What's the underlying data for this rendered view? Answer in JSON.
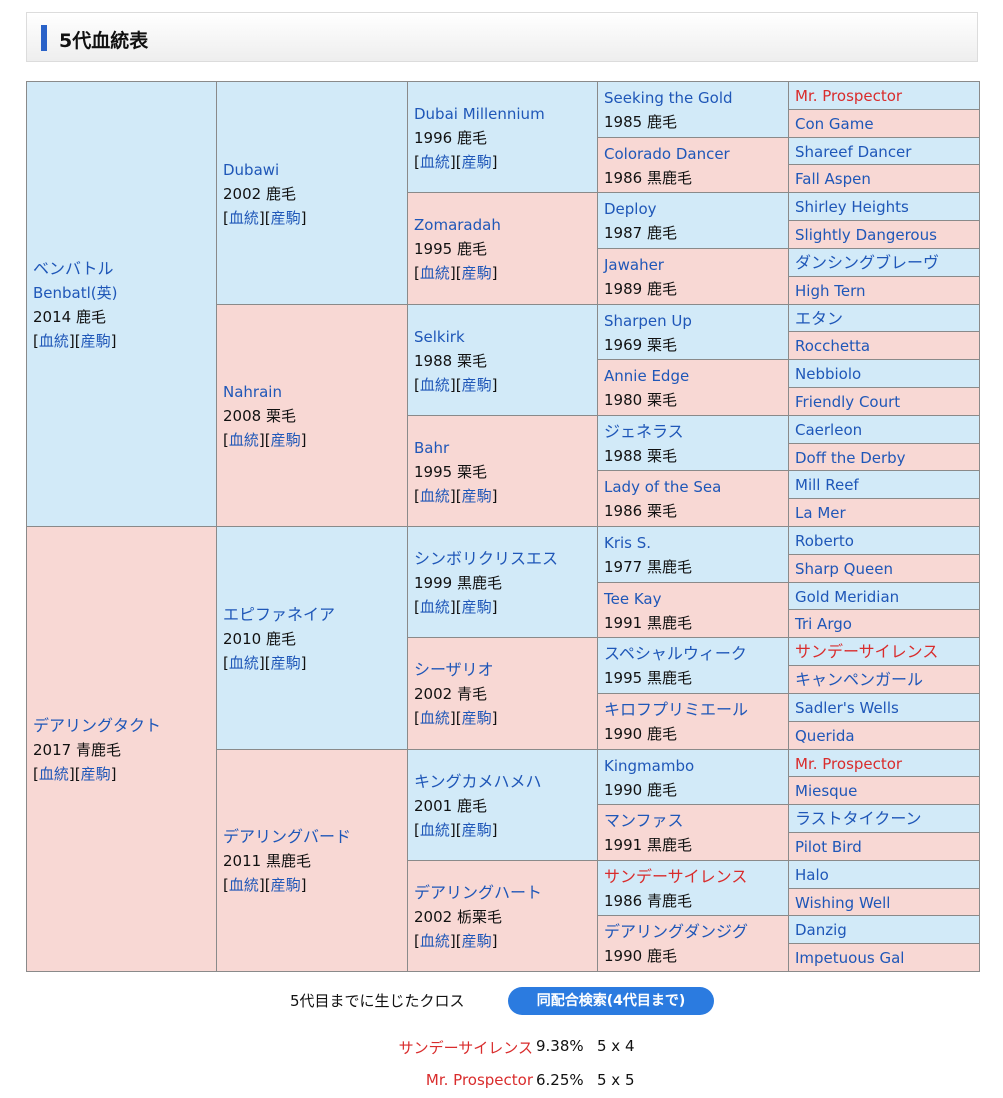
{
  "section": {
    "title": "5代血統表"
  },
  "links": {
    "pedigree": "血統",
    "offspring": "産駒"
  },
  "pedigree": [
    {
      "gen": 1,
      "sex": "m",
      "name": "ベンバトル",
      "alt": "Benbatl(英)",
      "info": "2014 鹿毛",
      "links": true
    },
    {
      "gen": 1,
      "sex": "f",
      "name": "デアリングタクト",
      "info": "2017 青鹿毛",
      "links": true
    },
    {
      "gen": 2,
      "sex": "m",
      "name": "Dubawi",
      "info": "2002 鹿毛",
      "links": true
    },
    {
      "gen": 2,
      "sex": "f",
      "name": "Nahrain",
      "info": "2008 栗毛",
      "links": true
    },
    {
      "gen": 2,
      "sex": "m",
      "name": "エピファネイア",
      "info": "2010 鹿毛",
      "links": true
    },
    {
      "gen": 2,
      "sex": "f",
      "name": "デアリングバード",
      "info": "2011 黒鹿毛",
      "links": true
    },
    {
      "gen": 3,
      "sex": "m",
      "name": "Dubai Millennium",
      "info": "1996 鹿毛",
      "links": true
    },
    {
      "gen": 3,
      "sex": "f",
      "name": "Zomaradah",
      "info": "1995 鹿毛",
      "links": true
    },
    {
      "gen": 3,
      "sex": "m",
      "name": "Selkirk",
      "info": "1988 栗毛",
      "links": true
    },
    {
      "gen": 3,
      "sex": "f",
      "name": "Bahr",
      "info": "1995 栗毛",
      "links": true
    },
    {
      "gen": 3,
      "sex": "m",
      "name": "シンボリクリスエス",
      "info": "1999 黒鹿毛",
      "links": true
    },
    {
      "gen": 3,
      "sex": "f",
      "name": "シーザリオ",
      "info": "2002 青毛",
      "links": true
    },
    {
      "gen": 3,
      "sex": "m",
      "name": "キングカメハメハ",
      "info": "2001 鹿毛",
      "links": true
    },
    {
      "gen": 3,
      "sex": "f",
      "name": "デアリングハート",
      "info": "2002 栃栗毛",
      "links": true
    },
    {
      "gen": 4,
      "sex": "m",
      "name": "Seeking the Gold",
      "info": "1985 鹿毛"
    },
    {
      "gen": 4,
      "sex": "f",
      "name": "Colorado Dancer",
      "info": "1986 黒鹿毛"
    },
    {
      "gen": 4,
      "sex": "m",
      "name": "Deploy",
      "info": "1987 鹿毛"
    },
    {
      "gen": 4,
      "sex": "f",
      "name": "Jawaher",
      "info": "1989 鹿毛"
    },
    {
      "gen": 4,
      "sex": "m",
      "name": "Sharpen Up",
      "info": "1969 栗毛"
    },
    {
      "gen": 4,
      "sex": "f",
      "name": "Annie Edge",
      "info": "1980 栗毛"
    },
    {
      "gen": 4,
      "sex": "m",
      "name": "ジェネラス",
      "info": "1988 栗毛"
    },
    {
      "gen": 4,
      "sex": "f",
      "name": "Lady of the Sea",
      "info": "1986 栗毛"
    },
    {
      "gen": 4,
      "sex": "m",
      "name": "Kris S.",
      "info": "1977 黒鹿毛"
    },
    {
      "gen": 4,
      "sex": "f",
      "name": "Tee Kay",
      "info": "1991 黒鹿毛"
    },
    {
      "gen": 4,
      "sex": "m",
      "name": "スペシャルウィーク",
      "info": "1995 黒鹿毛"
    },
    {
      "gen": 4,
      "sex": "f",
      "name": "キロフプリミエール",
      "info": "1990 鹿毛"
    },
    {
      "gen": 4,
      "sex": "m",
      "name": "Kingmambo",
      "info": "1990 鹿毛"
    },
    {
      "gen": 4,
      "sex": "f",
      "name": "マンファス",
      "info": "1991 黒鹿毛"
    },
    {
      "gen": 4,
      "sex": "m",
      "name": "サンデーサイレンス",
      "info": "1986 青鹿毛",
      "cross": true
    },
    {
      "gen": 4,
      "sex": "f",
      "name": "デアリングダンジグ",
      "info": "1990 鹿毛"
    },
    {
      "gen": 5,
      "sex": "m",
      "name": "Mr. Prospector",
      "cross": true
    },
    {
      "gen": 5,
      "sex": "f",
      "name": "Con Game"
    },
    {
      "gen": 5,
      "sex": "m",
      "name": "Shareef Dancer"
    },
    {
      "gen": 5,
      "sex": "f",
      "name": "Fall Aspen"
    },
    {
      "gen": 5,
      "sex": "m",
      "name": "Shirley Heights"
    },
    {
      "gen": 5,
      "sex": "f",
      "name": "Slightly Dangerous"
    },
    {
      "gen": 5,
      "sex": "m",
      "name": "ダンシングブレーヴ"
    },
    {
      "gen": 5,
      "sex": "f",
      "name": "High Tern"
    },
    {
      "gen": 5,
      "sex": "m",
      "name": "エタン"
    },
    {
      "gen": 5,
      "sex": "f",
      "name": "Rocchetta"
    },
    {
      "gen": 5,
      "sex": "m",
      "name": "Nebbiolo"
    },
    {
      "gen": 5,
      "sex": "f",
      "name": "Friendly Court"
    },
    {
      "gen": 5,
      "sex": "m",
      "name": "Caerleon"
    },
    {
      "gen": 5,
      "sex": "f",
      "name": "Doff the Derby"
    },
    {
      "gen": 5,
      "sex": "m",
      "name": "Mill Reef"
    },
    {
      "gen": 5,
      "sex": "f",
      "name": "La Mer"
    },
    {
      "gen": 5,
      "sex": "m",
      "name": "Roberto"
    },
    {
      "gen": 5,
      "sex": "f",
      "name": "Sharp Queen"
    },
    {
      "gen": 5,
      "sex": "m",
      "name": "Gold Meridian"
    },
    {
      "gen": 5,
      "sex": "f",
      "name": "Tri Argo"
    },
    {
      "gen": 5,
      "sex": "m",
      "name": "サンデーサイレンス",
      "cross": true
    },
    {
      "gen": 5,
      "sex": "f",
      "name": "キャンペンガール"
    },
    {
      "gen": 5,
      "sex": "m",
      "name": "Sadler's Wells"
    },
    {
      "gen": 5,
      "sex": "f",
      "name": "Querida"
    },
    {
      "gen": 5,
      "sex": "m",
      "name": "Mr. Prospector",
      "cross": true
    },
    {
      "gen": 5,
      "sex": "f",
      "name": "Miesque"
    },
    {
      "gen": 5,
      "sex": "m",
      "name": "ラストタイクーン"
    },
    {
      "gen": 5,
      "sex": "f",
      "name": "Pilot Bird"
    },
    {
      "gen": 5,
      "sex": "m",
      "name": "Halo"
    },
    {
      "gen": 5,
      "sex": "f",
      "name": "Wishing Well"
    },
    {
      "gen": 5,
      "sex": "m",
      "name": "Danzig"
    },
    {
      "gen": 5,
      "sex": "f",
      "name": "Impetuous Gal"
    }
  ],
  "cross": {
    "title": "5代目までに生じたクロス",
    "button": "同配合検索(4代目まで)",
    "rows": [
      {
        "name": "サンデーサイレンス",
        "percent": "9.38%",
        "gen": "5 x 4"
      },
      {
        "name": "Mr. Prospector",
        "percent": "6.25%",
        "gen": "5 x 5"
      }
    ]
  },
  "colors": {
    "male": "#d2eaf8",
    "female": "#f8d8d4",
    "link": "#1f57b8",
    "cross": "#d92c2c",
    "accent": "#2a62c8",
    "button": "#2b7be0"
  }
}
